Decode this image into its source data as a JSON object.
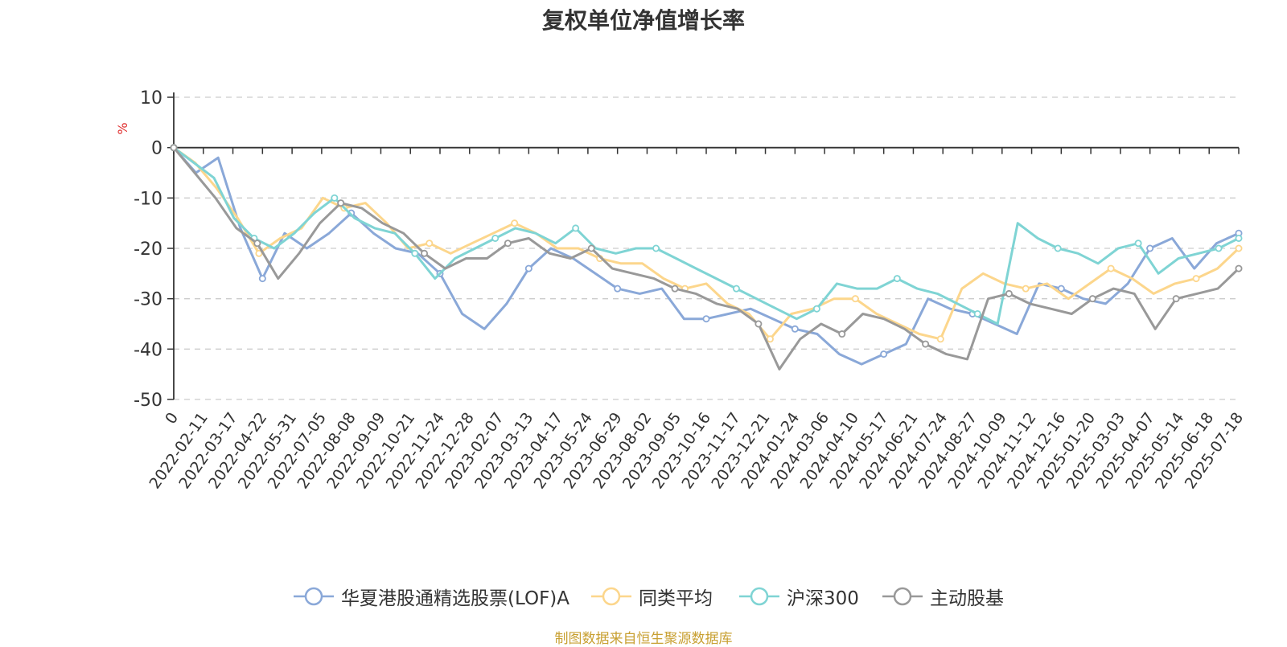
{
  "title": "复权单位净值增长率",
  "source_note": "制图数据来自恒生聚源数据库",
  "chart_data": {
    "type": "line",
    "title": "复权单位净值增长率",
    "ylabel": "%",
    "xlabel": "",
    "ylim": [
      -50,
      10
    ],
    "yticks": [
      10,
      0,
      -10,
      -20,
      -30,
      -40,
      -50
    ],
    "x_tick_labels": [
      "0",
      "2022-02-11",
      "2022-03-17",
      "2022-04-22",
      "2022-05-31",
      "2022-07-05",
      "2022-08-08",
      "2022-09-09",
      "2022-10-21",
      "2022-11-24",
      "2022-12-28",
      "2023-02-07",
      "2023-03-13",
      "2023-04-17",
      "2023-05-24",
      "2023-06-29",
      "2023-08-02",
      "2023-09-05",
      "2023-10-16",
      "2023-11-17",
      "2023-12-21",
      "2024-01-24",
      "2024-03-06",
      "2024-04-10",
      "2024-05-17",
      "2024-06-21",
      "2024-07-24",
      "2024-08-27",
      "2024-10-09",
      "2024-11-12",
      "2024-12-16",
      "2025-01-20",
      "2025-03-03",
      "2025-04-07",
      "2025-05-14",
      "2025-06-18",
      "2025-07-18"
    ],
    "grid": "dashed horizontal",
    "legend_position": "bottom",
    "series": [
      {
        "name": "华夏港股通精选股票(LOF)A",
        "color": "#8aa8d8",
        "values": [
          0,
          -5,
          -2,
          -16,
          -26,
          -17,
          -20,
          -17,
          -13,
          -17,
          -20,
          -21,
          -25,
          -33,
          -36,
          -31,
          -24,
          -20,
          -22,
          -25,
          -28,
          -29,
          -28,
          -34,
          -34,
          -33,
          -32,
          -34,
          -36,
          -37,
          -41,
          -43,
          -41,
          -39,
          -30,
          -32,
          -33,
          -35,
          -37,
          -27,
          -28,
          -30,
          -31,
          -27,
          -20,
          -18,
          -24,
          -19,
          -17
        ]
      },
      {
        "name": "同类平均",
        "color": "#fcd68c",
        "values": [
          0,
          -3,
          -8,
          -14,
          -21,
          -18,
          -16,
          -10,
          -12,
          -11,
          -15,
          -20,
          -19,
          -21,
          -19,
          -17,
          -15,
          -17,
          -20,
          -20,
          -22,
          -23,
          -23,
          -26,
          -28,
          -27,
          -31,
          -33,
          -38,
          -33,
          -32,
          -30,
          -30,
          -33,
          -35,
          -37,
          -38,
          -28,
          -25,
          -27,
          -28,
          -27,
          -30,
          -27,
          -24,
          -26,
          -29,
          -27,
          -26,
          -24,
          -20
        ]
      },
      {
        "name": "沪深300",
        "color": "#7fd4d4",
        "values": [
          0,
          -3,
          -6,
          -14,
          -18,
          -20,
          -17,
          -13,
          -10,
          -14,
          -16,
          -17,
          -21,
          -26,
          -22,
          -20,
          -18,
          -16,
          -17,
          -19,
          -16,
          -20,
          -21,
          -20,
          -20,
          -22,
          -24,
          -26,
          -28,
          -30,
          -32,
          -34,
          -32,
          -27,
          -28,
          -28,
          -26,
          -28,
          -29,
          -31,
          -33,
          -35,
          -15,
          -18,
          -20,
          -21,
          -23,
          -20,
          -19,
          -25,
          -22,
          -21,
          -20,
          -18
        ]
      },
      {
        "name": "主动股基",
        "color": "#999999",
        "values": [
          0,
          -5,
          -10,
          -16,
          -19,
          -26,
          -21,
          -15,
          -11,
          -12,
          -15,
          -17,
          -21,
          -24,
          -22,
          -22,
          -19,
          -18,
          -21,
          -22,
          -20,
          -24,
          -25,
          -26,
          -28,
          -29,
          -31,
          -32,
          -35,
          -44,
          -38,
          -35,
          -37,
          -33,
          -34,
          -36,
          -39,
          -41,
          -42,
          -30,
          -29,
          -31,
          -32,
          -33,
          -30,
          -28,
          -29,
          -36,
          -30,
          -29,
          -28,
          -24
        ]
      }
    ]
  }
}
